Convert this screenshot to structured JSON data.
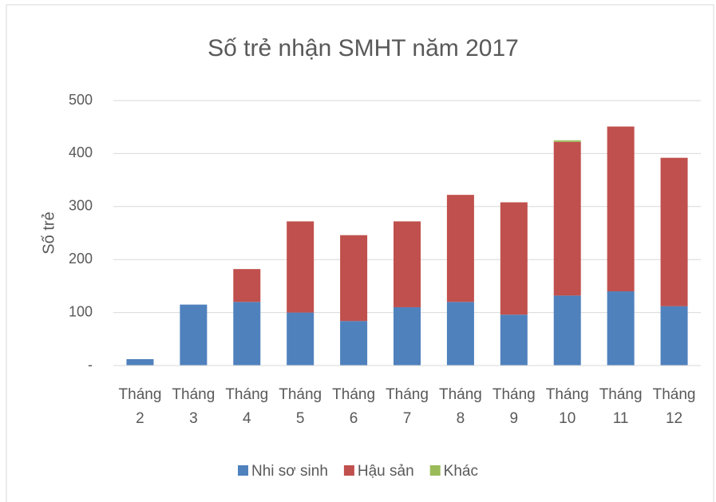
{
  "chart_data": {
    "type": "stacked_bar",
    "title": "Số trẻ nhận SMHT năm 2017",
    "y_label": "Số trẻ",
    "categories": [
      "Tháng 2",
      "Tháng 3",
      "Tháng 4",
      "Tháng 5",
      "Tháng 6",
      "Tháng 7",
      "Tháng 8",
      "Tháng 9",
      "Tháng 10",
      "Tháng 11",
      "Tháng 12"
    ],
    "series": [
      {
        "name": "Nhi sơ sinh",
        "color": "#4f81bd",
        "values": [
          12,
          115,
          120,
          100,
          84,
          110,
          120,
          96,
          132,
          140,
          112
        ]
      },
      {
        "name": "Hậu sản",
        "color": "#c0504d",
        "values": [
          0,
          0,
          62,
          172,
          162,
          162,
          202,
          212,
          290,
          311,
          280
        ]
      },
      {
        "name": "Khác",
        "color": "#9bbb59",
        "values": [
          0,
          0,
          0,
          0,
          0,
          0,
          0,
          0,
          3,
          0,
          0
        ]
      }
    ],
    "ylim": [
      0,
      500
    ],
    "yticks": [
      {
        "value": 0,
        "label": "-"
      },
      100,
      200,
      300,
      400,
      500
    ],
    "grid": true,
    "legend": "bottom"
  }
}
